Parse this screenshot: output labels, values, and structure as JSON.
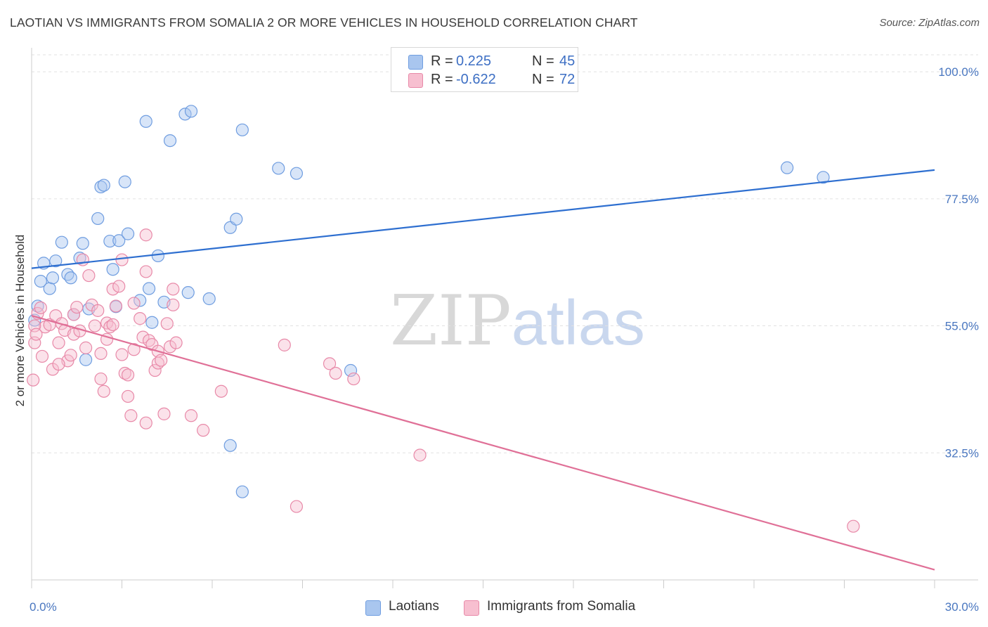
{
  "title": "LAOTIAN VS IMMIGRANTS FROM SOMALIA 2 OR MORE VEHICLES IN HOUSEHOLD CORRELATION CHART",
  "source": "Source: ZipAtlas.com",
  "watermark": {
    "zip": "ZIP",
    "atlas": "atlas"
  },
  "legend": {
    "rows": [
      {
        "r_label": "R =",
        "r_value": "0.225",
        "n_label": "N =",
        "n_value": "45",
        "color": "#a9c6ef",
        "border": "#6f9de0"
      },
      {
        "r_label": "R =",
        "r_value": "-0.622",
        "n_label": "N =",
        "n_value": "72",
        "color": "#f7bfd0",
        "border": "#e889a8"
      }
    ]
  },
  "bottom_legend": [
    {
      "label": "Laotians",
      "color": "#a9c6ef",
      "border": "#6f9de0"
    },
    {
      "label": "Immigrants from Somalia",
      "color": "#f7bfd0",
      "border": "#e889a8"
    }
  ],
  "chart_data": {
    "type": "scatter",
    "title": "LAOTIAN VS IMMIGRANTS FROM SOMALIA 2 OR MORE VEHICLES IN HOUSEHOLD CORRELATION CHART",
    "xlabel": "",
    "ylabel": "2 or more Vehicles in Household",
    "xlim": [
      0,
      30
    ],
    "ylim": [
      10,
      103
    ],
    "x_tick_labels": [
      "0.0%",
      "30.0%"
    ],
    "y_ticks": [
      100,
      77.5,
      55,
      32.5
    ],
    "y_tick_labels": [
      "100.0%",
      "77.5%",
      "55.0%",
      "32.5%"
    ],
    "grid": true,
    "legend_position": "top-center",
    "series": [
      {
        "name": "Laotians",
        "color": "#6f9de0",
        "fill": "#a9c6ef",
        "line_color": "#2e6fd0",
        "trend": [
          [
            0,
            65.2
          ],
          [
            30,
            82.6
          ]
        ],
        "points": [
          [
            0.1,
            56.0
          ],
          [
            0.3,
            62.9
          ],
          [
            0.4,
            66.1
          ],
          [
            0.6,
            61.6
          ],
          [
            0.7,
            63.5
          ],
          [
            0.8,
            66.5
          ],
          [
            1.0,
            69.8
          ],
          [
            1.2,
            64.1
          ],
          [
            1.3,
            63.5
          ],
          [
            1.4,
            57.0
          ],
          [
            1.6,
            67.0
          ],
          [
            1.7,
            69.6
          ],
          [
            1.8,
            49.0
          ],
          [
            1.9,
            58.0
          ],
          [
            2.2,
            74.0
          ],
          [
            2.3,
            79.6
          ],
          [
            2.4,
            79.9
          ],
          [
            2.6,
            70.0
          ],
          [
            2.7,
            65.0
          ],
          [
            2.8,
            58.4
          ],
          [
            2.9,
            70.1
          ],
          [
            3.1,
            80.5
          ],
          [
            3.2,
            71.3
          ],
          [
            3.6,
            59.5
          ],
          [
            3.8,
            91.2
          ],
          [
            3.9,
            61.6
          ],
          [
            4.0,
            55.6
          ],
          [
            4.2,
            67.4
          ],
          [
            4.4,
            59.2
          ],
          [
            4.6,
            87.8
          ],
          [
            5.1,
            92.5
          ],
          [
            5.3,
            93.0
          ],
          [
            5.2,
            60.9
          ],
          [
            5.9,
            59.8
          ],
          [
            6.6,
            72.4
          ],
          [
            6.8,
            73.9
          ],
          [
            7.0,
            89.7
          ],
          [
            6.6,
            33.8
          ],
          [
            7.0,
            25.6
          ],
          [
            8.2,
            82.9
          ],
          [
            8.8,
            82.0
          ],
          [
            10.6,
            47.1
          ],
          [
            25.1,
            83.0
          ],
          [
            26.3,
            81.3
          ],
          [
            0.2,
            58.5
          ]
        ]
      },
      {
        "name": "Immigrants from Somalia",
        "color": "#e889a8",
        "fill": "#f7bfd0",
        "line_color": "#e07097",
        "trend": [
          [
            0,
            56.8
          ],
          [
            30,
            11.8
          ]
        ],
        "points": [
          [
            0.05,
            45.4
          ],
          [
            0.1,
            52.0
          ],
          [
            0.2,
            57.2
          ],
          [
            0.3,
            58.2
          ],
          [
            0.35,
            49.6
          ],
          [
            0.45,
            54.8
          ],
          [
            0.6,
            55.2
          ],
          [
            0.7,
            47.3
          ],
          [
            0.8,
            56.8
          ],
          [
            0.9,
            52.0
          ],
          [
            1.0,
            55.4
          ],
          [
            1.1,
            54.2
          ],
          [
            1.2,
            48.8
          ],
          [
            1.3,
            49.8
          ],
          [
            1.4,
            53.5
          ],
          [
            1.4,
            57.0
          ],
          [
            1.5,
            58.3
          ],
          [
            1.6,
            54.1
          ],
          [
            1.7,
            66.7
          ],
          [
            1.8,
            51.1
          ],
          [
            1.9,
            63.9
          ],
          [
            2.0,
            58.7
          ],
          [
            2.1,
            55.0
          ],
          [
            2.2,
            57.7
          ],
          [
            2.3,
            50.1
          ],
          [
            2.3,
            45.6
          ],
          [
            2.4,
            43.4
          ],
          [
            2.5,
            55.5
          ],
          [
            2.6,
            54.8
          ],
          [
            2.7,
            55.2
          ],
          [
            2.7,
            61.5
          ],
          [
            2.8,
            58.5
          ],
          [
            2.9,
            62.0
          ],
          [
            3.0,
            66.7
          ],
          [
            3.0,
            49.9
          ],
          [
            3.1,
            46.6
          ],
          [
            3.2,
            42.5
          ],
          [
            3.2,
            46.3
          ],
          [
            3.3,
            39.1
          ],
          [
            3.4,
            50.8
          ],
          [
            3.4,
            59.0
          ],
          [
            3.6,
            56.3
          ],
          [
            3.7,
            53.0
          ],
          [
            3.8,
            37.8
          ],
          [
            3.9,
            52.4
          ],
          [
            3.8,
            64.6
          ],
          [
            4.0,
            51.7
          ],
          [
            4.1,
            47.1
          ],
          [
            4.2,
            50.5
          ],
          [
            4.2,
            48.4
          ],
          [
            4.3,
            48.9
          ],
          [
            4.4,
            39.4
          ],
          [
            4.5,
            55.4
          ],
          [
            4.6,
            51.3
          ],
          [
            4.7,
            58.7
          ],
          [
            4.8,
            52.0
          ],
          [
            4.7,
            61.5
          ],
          [
            5.3,
            39.1
          ],
          [
            5.7,
            36.5
          ],
          [
            6.3,
            43.4
          ],
          [
            8.4,
            51.6
          ],
          [
            9.9,
            48.3
          ],
          [
            10.1,
            46.6
          ],
          [
            10.7,
            45.6
          ],
          [
            12.9,
            32.1
          ],
          [
            8.8,
            23.0
          ],
          [
            27.3,
            19.5
          ],
          [
            0.1,
            55.0
          ],
          [
            0.15,
            53.5
          ],
          [
            0.9,
            48.2
          ],
          [
            2.5,
            52.6
          ],
          [
            3.8,
            71.1
          ]
        ]
      }
    ]
  }
}
